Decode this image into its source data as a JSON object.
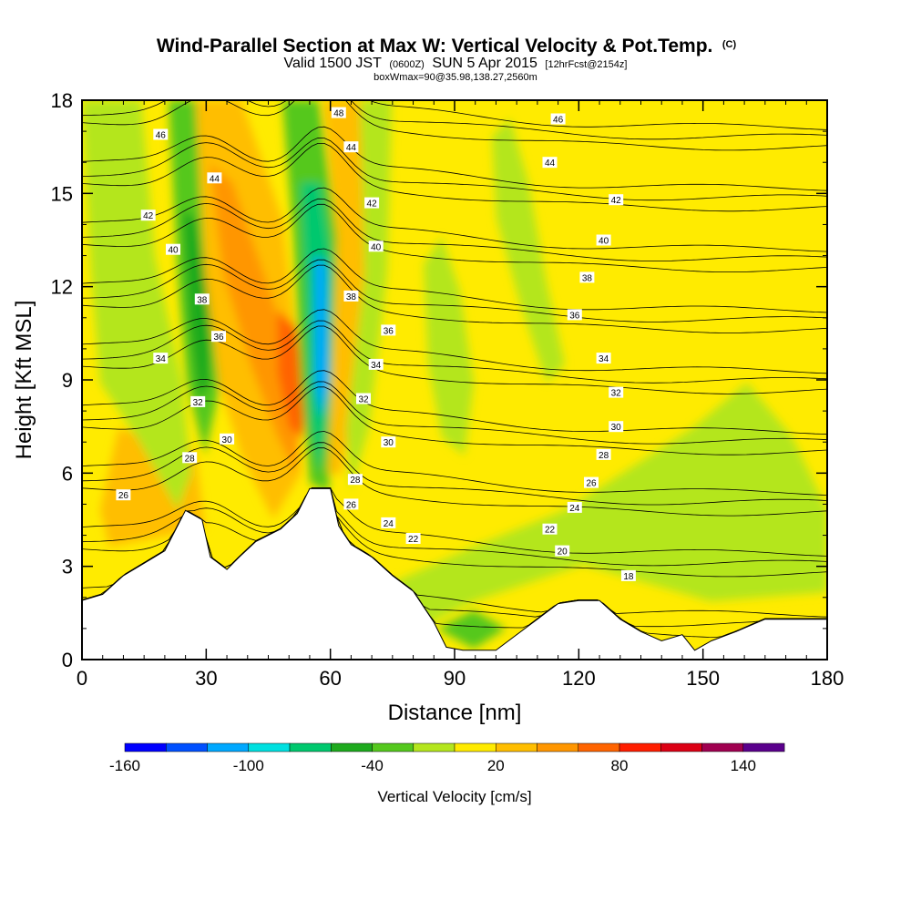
{
  "title": {
    "main": "Wind-Parallel Section at Max W: Vertical Velocity & Pot.Temp.",
    "copyright": "(C)",
    "valid_prefix": "Valid 1500 JST",
    "valid_utc": "(0600Z)",
    "valid_date": "SUN 5 Apr 2015",
    "forecast": "[12hrFcst@2154z]",
    "box_info": "boxWmax=90@35.98,138.27,2560m"
  },
  "chart_data": {
    "type": "heatmap",
    "xlabel": "Distance [nm]",
    "ylabel": "Height [Kft MSL]",
    "xlim": [
      0,
      180
    ],
    "ylim": [
      0,
      18
    ],
    "x_ticks": [
      0,
      30,
      60,
      90,
      120,
      150,
      180
    ],
    "y_ticks": [
      0,
      3,
      6,
      9,
      12,
      15,
      18
    ],
    "colorbar": {
      "label": "Vertical Velocity [cm/s]",
      "range": [
        -160,
        160
      ],
      "tick_labels": [
        "-160",
        "-100",
        "-40",
        "20",
        "80",
        "140"
      ],
      "tick_values": [
        -160,
        -100,
        -40,
        20,
        80,
        140
      ],
      "bin_width": 20,
      "colors": [
        "#0000ff",
        "#0050ff",
        "#00a8ff",
        "#00e0e0",
        "#00c86e",
        "#1eaa1e",
        "#55c81e",
        "#b4e61e",
        "#ffeb00",
        "#ffbe00",
        "#ff9600",
        "#ff6400",
        "#ff1e00",
        "#dc0014",
        "#a00050",
        "#5a008c"
      ]
    },
    "terrain": [
      [
        0,
        1.9
      ],
      [
        5,
        2.1
      ],
      [
        10,
        2.7
      ],
      [
        15,
        3.1
      ],
      [
        20,
        3.5
      ],
      [
        25,
        4.8
      ],
      [
        29,
        4.5
      ],
      [
        31,
        3.3
      ],
      [
        35,
        2.9
      ],
      [
        38,
        3.3
      ],
      [
        42,
        3.8
      ],
      [
        48,
        4.2
      ],
      [
        52,
        4.7
      ],
      [
        55,
        5.5
      ],
      [
        60,
        5.5
      ],
      [
        62,
        4.3
      ],
      [
        65,
        3.7
      ],
      [
        70,
        3.3
      ],
      [
        75,
        2.7
      ],
      [
        80,
        2.2
      ],
      [
        85,
        1.2
      ],
      [
        88,
        0.4
      ],
      [
        92,
        0.3
      ],
      [
        100,
        0.3
      ],
      [
        104,
        0.7
      ],
      [
        110,
        1.3
      ],
      [
        115,
        1.8
      ],
      [
        120,
        1.9
      ],
      [
        125,
        1.9
      ],
      [
        130,
        1.3
      ],
      [
        135,
        0.9
      ],
      [
        140,
        0.6
      ],
      [
        145,
        0.8
      ],
      [
        148,
        0.3
      ],
      [
        152,
        0.6
      ],
      [
        158,
        0.9
      ],
      [
        165,
        1.3
      ],
      [
        172,
        1.3
      ],
      [
        180,
        1.3
      ]
    ],
    "theta_contours": [
      18,
      20,
      22,
      24,
      26,
      28,
      30,
      32,
      34,
      36,
      38,
      40,
      42,
      44,
      46,
      48
    ],
    "theta_labels": [
      {
        "text": "46",
        "x": 19,
        "y": 16.9
      },
      {
        "text": "44",
        "x": 32,
        "y": 15.5
      },
      {
        "text": "42",
        "x": 16,
        "y": 14.3
      },
      {
        "text": "40",
        "x": 22,
        "y": 13.2
      },
      {
        "text": "38",
        "x": 29,
        "y": 11.6
      },
      {
        "text": "36",
        "x": 33,
        "y": 10.4
      },
      {
        "text": "34",
        "x": 19,
        "y": 9.7
      },
      {
        "text": "32",
        "x": 28,
        "y": 8.3
      },
      {
        "text": "30",
        "x": 35,
        "y": 7.1
      },
      {
        "text": "28",
        "x": 26,
        "y": 6.5
      },
      {
        "text": "26",
        "x": 10,
        "y": 5.3
      },
      {
        "text": "48",
        "x": 62,
        "y": 17.6
      },
      {
        "text": "44",
        "x": 65,
        "y": 16.5
      },
      {
        "text": "42",
        "x": 70,
        "y": 14.7
      },
      {
        "text": "40",
        "x": 71,
        "y": 13.3
      },
      {
        "text": "38",
        "x": 65,
        "y": 11.7
      },
      {
        "text": "36",
        "x": 74,
        "y": 10.6
      },
      {
        "text": "34",
        "x": 71,
        "y": 9.5
      },
      {
        "text": "32",
        "x": 68,
        "y": 8.4
      },
      {
        "text": "30",
        "x": 74,
        "y": 7.0
      },
      {
        "text": "28",
        "x": 66,
        "y": 5.8
      },
      {
        "text": "26",
        "x": 65,
        "y": 5.0
      },
      {
        "text": "24",
        "x": 74,
        "y": 4.4
      },
      {
        "text": "22",
        "x": 80,
        "y": 3.9
      },
      {
        "text": "46",
        "x": 115,
        "y": 17.4
      },
      {
        "text": "44",
        "x": 113,
        "y": 16.0
      },
      {
        "text": "42",
        "x": 129,
        "y": 14.8
      },
      {
        "text": "40",
        "x": 126,
        "y": 13.5
      },
      {
        "text": "38",
        "x": 122,
        "y": 12.3
      },
      {
        "text": "36",
        "x": 119,
        "y": 11.1
      },
      {
        "text": "34",
        "x": 126,
        "y": 9.7
      },
      {
        "text": "32",
        "x": 129,
        "y": 8.6
      },
      {
        "text": "30",
        "x": 129,
        "y": 7.5
      },
      {
        "text": "28",
        "x": 126,
        "y": 6.6
      },
      {
        "text": "26",
        "x": 123,
        "y": 5.7
      },
      {
        "text": "24",
        "x": 119,
        "y": 4.9
      },
      {
        "text": "22",
        "x": 113,
        "y": 4.2
      },
      {
        "text": "20",
        "x": 116,
        "y": 3.5
      },
      {
        "text": "18",
        "x": 132,
        "y": 2.7
      }
    ]
  }
}
